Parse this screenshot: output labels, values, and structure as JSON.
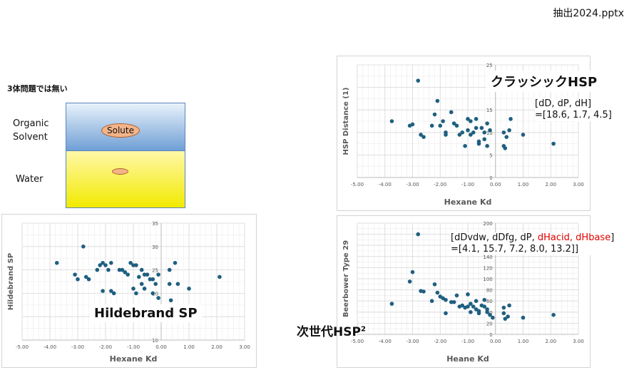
{
  "file_label": "抽出2024.pptx",
  "mixture": {
    "title": "3体問題では無い",
    "organic_label": "Organic\nSolvent",
    "water_label": "Water",
    "solute_label": "Solute"
  },
  "labels": {
    "hildebrand": "Hildebrand SP",
    "classic": "クラッシックHSP",
    "next_gen": "次世代HSP",
    "next_gen_sup": "2"
  },
  "classic_params": {
    "line1": "[dD, dP, dH]",
    "line2": "=[18.6, 1.7, 4.5]"
  },
  "beerbower_params": {
    "open": "[",
    "normal": "dDvdw, dDfg, dP, ",
    "red": "dHacid, dHbase",
    "close": "]",
    "line2": "=[4.1, 15.7, 7.2, 8.0, 13.2]]"
  },
  "colors": {
    "marker": "#1f5f80",
    "grid": "#d9d9d9",
    "highlight": "#e00000"
  },
  "chart_data": [
    {
      "type": "scatter",
      "xlabel": "Hexane Kd",
      "ylabel": "Hildebrand SP",
      "xlim": [
        -5,
        3
      ],
      "ylim": [
        10,
        35
      ],
      "xticks": [
        "-5.00",
        "-4.00",
        "-3.00",
        "-2.00",
        "-1.00",
        "0.00",
        "1.00",
        "2.00",
        "3.00"
      ],
      "yticks": [
        "10",
        "15",
        "20",
        "25",
        "30",
        "35"
      ],
      "points": [
        [
          -3.75,
          26.5
        ],
        [
          -3.1,
          24
        ],
        [
          -3.0,
          23
        ],
        [
          -2.8,
          30
        ],
        [
          -2.7,
          23.5
        ],
        [
          -2.6,
          23
        ],
        [
          -2.3,
          25
        ],
        [
          -2.2,
          26
        ],
        [
          -2.1,
          26.5
        ],
        [
          -2.0,
          26
        ],
        [
          -2.1,
          20.5
        ],
        [
          -1.9,
          25
        ],
        [
          -1.8,
          26.5
        ],
        [
          -1.8,
          20.5
        ],
        [
          -1.7,
          20
        ],
        [
          -1.5,
          25
        ],
        [
          -1.4,
          25
        ],
        [
          -1.3,
          24.5
        ],
        [
          -1.2,
          24
        ],
        [
          -1.1,
          26.5
        ],
        [
          -1.0,
          26
        ],
        [
          -1.0,
          21
        ],
        [
          -0.9,
          20
        ],
        [
          -0.9,
          26
        ],
        [
          -0.8,
          23.5
        ],
        [
          -0.7,
          25
        ],
        [
          -0.7,
          22
        ],
        [
          -0.6,
          24
        ],
        [
          -0.6,
          21
        ],
        [
          -0.5,
          24
        ],
        [
          -0.4,
          23
        ],
        [
          -0.4,
          16
        ],
        [
          -0.4,
          15.5
        ],
        [
          -0.3,
          20
        ],
        [
          -0.3,
          23
        ],
        [
          -0.2,
          22
        ],
        [
          -0.1,
          19
        ],
        [
          -0.1,
          24
        ],
        [
          0.3,
          25
        ],
        [
          0.3,
          22
        ],
        [
          0.35,
          18.5
        ],
        [
          0.5,
          26.5
        ],
        [
          0.6,
          22
        ],
        [
          1.0,
          21
        ],
        [
          2.1,
          23.5
        ]
      ]
    },
    {
      "type": "scatter",
      "xlabel": "Hexane Kd",
      "ylabel": "HSP Distance (1)",
      "xlim": [
        -5,
        3
      ],
      "ylim": [
        0,
        25
      ],
      "xticks": [
        "-5.00",
        "-4.00",
        "-3.00",
        "-2.00",
        "-1.00",
        "0.00",
        "1.00",
        "2.00",
        "3.00"
      ],
      "yticks": [
        "0",
        "5",
        "10",
        "15",
        "20",
        "25"
      ],
      "points": [
        [
          -3.75,
          12.5
        ],
        [
          -3.1,
          11.5
        ],
        [
          -3.0,
          11.8
        ],
        [
          -2.8,
          21.5
        ],
        [
          -2.7,
          9.5
        ],
        [
          -2.6,
          9
        ],
        [
          -2.3,
          11.5
        ],
        [
          -2.2,
          14
        ],
        [
          -2.1,
          17
        ],
        [
          -2.0,
          11.5
        ],
        [
          -1.9,
          12.5
        ],
        [
          -1.8,
          10
        ],
        [
          -1.8,
          9.5
        ],
        [
          -1.6,
          14.5
        ],
        [
          -1.5,
          12
        ],
        [
          -1.4,
          11.5
        ],
        [
          -1.3,
          9.5
        ],
        [
          -1.2,
          10
        ],
        [
          -1.1,
          7
        ],
        [
          -1.0,
          13
        ],
        [
          -1.0,
          10.5
        ],
        [
          -0.9,
          12.5
        ],
        [
          -0.9,
          9.5
        ],
        [
          -0.8,
          10
        ],
        [
          -0.7,
          13
        ],
        [
          -0.7,
          11
        ],
        [
          -0.6,
          8
        ],
        [
          -0.6,
          7.5
        ],
        [
          -0.5,
          11
        ],
        [
          -0.4,
          10
        ],
        [
          -0.4,
          8.5
        ],
        [
          -0.3,
          7
        ],
        [
          -0.3,
          12
        ],
        [
          -0.2,
          10.5
        ],
        [
          0.3,
          10
        ],
        [
          0.3,
          7
        ],
        [
          0.35,
          6.5
        ],
        [
          0.4,
          9
        ],
        [
          0.5,
          10.5
        ],
        [
          0.55,
          13
        ],
        [
          1.0,
          9.5
        ],
        [
          2.1,
          7.5
        ]
      ]
    },
    {
      "type": "scatter",
      "xlabel": "Heane Kd",
      "ylabel": "Beerbower Type 29",
      "xlim": [
        -5,
        3
      ],
      "ylim": [
        0,
        200
      ],
      "xticks": [
        "-5.00",
        "-4.00",
        "-3.00",
        "-2.00",
        "-1.00",
        "0.00",
        "1.00",
        "2.00",
        "3.00"
      ],
      "yticks": [
        "0",
        "20",
        "40",
        "60",
        "80",
        "100",
        "120",
        "140",
        "160",
        "180",
        "200"
      ],
      "points": [
        [
          -3.75,
          55
        ],
        [
          -3.1,
          95
        ],
        [
          -3.0,
          112
        ],
        [
          -2.8,
          180
        ],
        [
          -2.7,
          78
        ],
        [
          -2.6,
          77
        ],
        [
          -2.3,
          60
        ],
        [
          -2.2,
          90
        ],
        [
          -2.1,
          75
        ],
        [
          -2.0,
          68
        ],
        [
          -1.9,
          65
        ],
        [
          -1.8,
          38
        ],
        [
          -1.8,
          62
        ],
        [
          -1.6,
          58
        ],
        [
          -1.5,
          58
        ],
        [
          -1.4,
          70
        ],
        [
          -1.3,
          50
        ],
        [
          -1.2,
          52
        ],
        [
          -1.1,
          48
        ],
        [
          -1.0,
          72
        ],
        [
          -1.0,
          50
        ],
        [
          -0.9,
          55
        ],
        [
          -0.9,
          40
        ],
        [
          -0.8,
          50
        ],
        [
          -0.7,
          60
        ],
        [
          -0.7,
          45
        ],
        [
          -0.6,
          42
        ],
        [
          -0.6,
          38
        ],
        [
          -0.5,
          52
        ],
        [
          -0.4,
          50
        ],
        [
          -0.4,
          62
        ],
        [
          -0.3,
          40
        ],
        [
          -0.3,
          45
        ],
        [
          -0.2,
          35
        ],
        [
          -0.1,
          30
        ],
        [
          0.3,
          48
        ],
        [
          0.3,
          38
        ],
        [
          0.35,
          28
        ],
        [
          0.45,
          32
        ],
        [
          0.5,
          52
        ],
        [
          1.0,
          30
        ],
        [
          2.1,
          35
        ]
      ]
    }
  ]
}
